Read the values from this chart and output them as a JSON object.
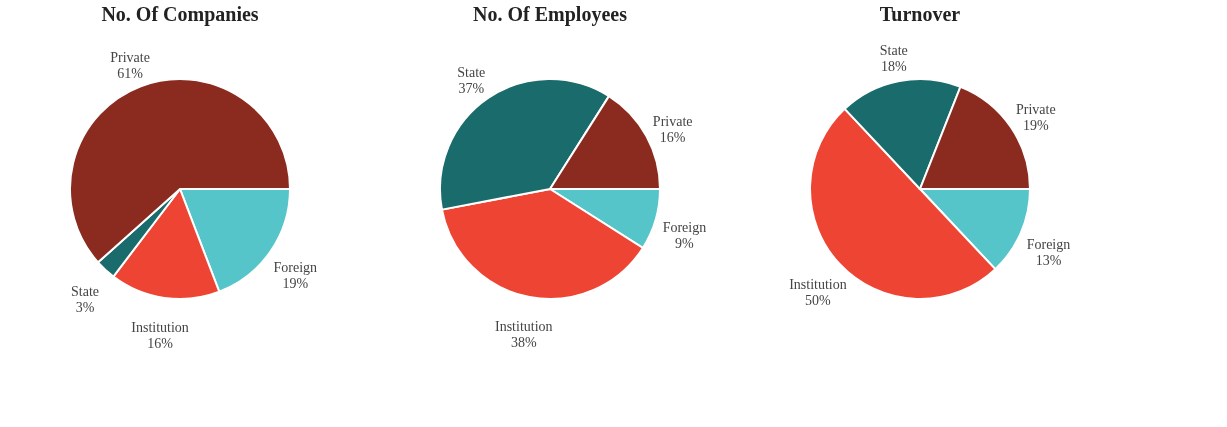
{
  "chart_data": [
    {
      "type": "pie",
      "title": "No. Of Companies",
      "categories": [
        "Foreign",
        "Institution",
        "State",
        "Private"
      ],
      "values": [
        19,
        16,
        3,
        61
      ],
      "value_labels": [
        "19%",
        "16%",
        "3%",
        "61%"
      ],
      "colors": [
        "#56c5c9",
        "#ee4433",
        "#1a6b6b",
        "#8b2a1f"
      ]
    },
    {
      "type": "pie",
      "title": "No. Of Employees",
      "categories": [
        "Foreign",
        "Institution",
        "State",
        "Private"
      ],
      "values": [
        9,
        38,
        37,
        16
      ],
      "value_labels": [
        "9%",
        "38%",
        "37%",
        "16%"
      ],
      "colors": [
        "#56c5c9",
        "#ee4433",
        "#1a6b6b",
        "#8b2a1f"
      ]
    },
    {
      "type": "pie",
      "title": "Turnover",
      "categories": [
        "Foreign",
        "Institution",
        "State",
        "Private"
      ],
      "values": [
        13,
        50,
        18,
        19
      ],
      "value_labels": [
        "13%",
        "50%",
        "18%",
        "19%"
      ],
      "colors": [
        "#56c5c9",
        "#ee4433",
        "#1a6b6b",
        "#8b2a1f"
      ]
    }
  ]
}
